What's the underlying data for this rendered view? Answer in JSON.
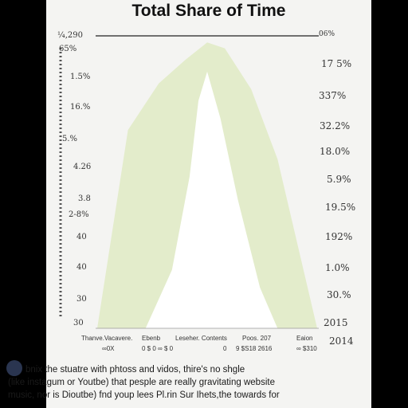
{
  "chart_data": {
    "type": "area",
    "title": "Total Share of Time",
    "left_ticks": [
      "¼,290",
      "65%",
      "1.5%",
      "16.%",
      "5.%",
      "4.26",
      "3.8",
      "2-8%",
      "40",
      "40",
      "30",
      "30"
    ],
    "right_ticks": [
      "06%",
      "17 5%",
      "337%",
      "32.2%",
      "18.0%",
      "5.9%",
      "19.5%",
      "192%",
      "1.0%",
      "30.%",
      "2015",
      "2014"
    ],
    "x_labels_top": [
      "Thanve.Vacavere.",
      "Ebenb",
      "Leseher. Contents",
      "Poos. 207",
      "Eaion"
    ],
    "x_labels_bottom": [
      "∞0X",
      "0 $ 0 ∞ $ 0",
      "0",
      "9 $S18 2616",
      "∞ $310"
    ],
    "ylim": [
      0,
      100
    ],
    "series": [
      {
        "color": "#e3eccb",
        "x": [
          0,
          0.14,
          0.28,
          0.4,
          0.5,
          0.58,
          0.7,
          0.82,
          1
        ],
        "values": [
          0,
          68,
          84,
          92,
          98,
          96,
          82,
          58,
          0
        ]
      },
      {
        "color": "#ffffff",
        "x": [
          0.22,
          0.34,
          0.42,
          0.46,
          0.5,
          0.56,
          0.64,
          0.74,
          0.82
        ],
        "values": [
          0,
          20,
          52,
          78,
          88,
          72,
          44,
          14,
          0
        ]
      }
    ],
    "grid": false
  },
  "caption": {
    "lines": [
      "bnix the stuatre with phtoss and vidos, thire's no shgle",
      "(like instagum or Youtbe) that pesple are really gravitating website",
      "music, nor is Dioutbe) fnd youp lees Pl.rin Sur Ihets,the towards for"
    ]
  }
}
